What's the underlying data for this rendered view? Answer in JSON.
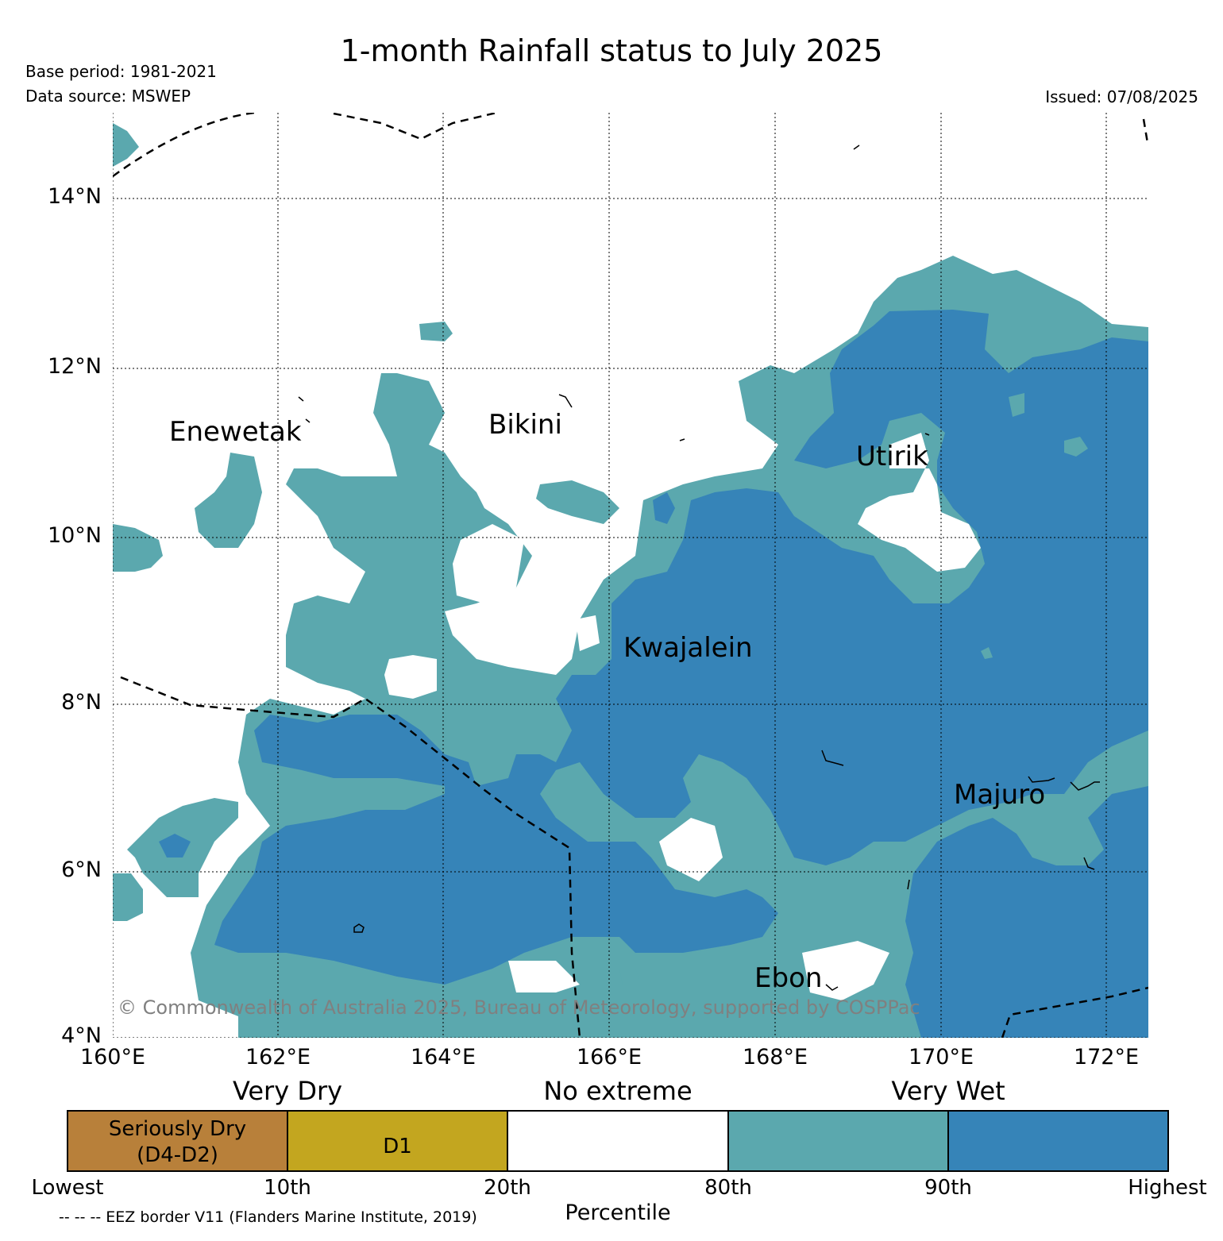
{
  "header": {
    "title": "1-month Rainfall status to July 2025",
    "base_period": "Base period: 1981-2021",
    "data_source": "Data source: MSWEP",
    "issued": "Issued: 07/08/2025"
  },
  "map": {
    "lat_labels": [
      "14°N",
      "12°N",
      "10°N",
      "8°N",
      "6°N",
      "4°N"
    ],
    "lon_labels": [
      "160°E",
      "162°E",
      "164°E",
      "166°E",
      "168°E",
      "170°E",
      "172°E"
    ],
    "places": {
      "enewetak": "Enewetak",
      "bikini": "Bikini",
      "utirik": "Utirik",
      "kwajalein": "Kwajalein",
      "majuro": "Majuro",
      "ebon": "Ebon"
    },
    "copyright": "© Commonwealth of Australia 2025, Bureau of Meteorology, supported by COSPPac",
    "colors": {
      "very_wet_80_90": "#5ba8ae",
      "very_wet_90_plus": "#3684b8",
      "no_extreme": "#ffffff"
    }
  },
  "legend": {
    "category_labels": {
      "very_dry": "Very Dry",
      "no_extreme": "No extreme",
      "very_wet": "Very Wet"
    },
    "boxes": [
      {
        "line1": "Seriously Dry",
        "line2": "(D4-D2)",
        "color": "#b8803a"
      },
      {
        "line1": "D1",
        "line2": "",
        "color": "#c3a61f"
      },
      {
        "line1": "",
        "line2": "",
        "color": "#ffffff"
      },
      {
        "line1": "",
        "line2": "",
        "color": "#5ba8ae"
      },
      {
        "line1": "",
        "line2": "",
        "color": "#3684b8"
      }
    ],
    "percentile_labels": [
      "Lowest",
      "10th",
      "20th",
      "80th",
      "90th",
      "Highest"
    ],
    "axis_title": "Percentile",
    "eez_note": "-- -- -- EEZ border V11 (Flanders Marine Institute, 2019)"
  }
}
